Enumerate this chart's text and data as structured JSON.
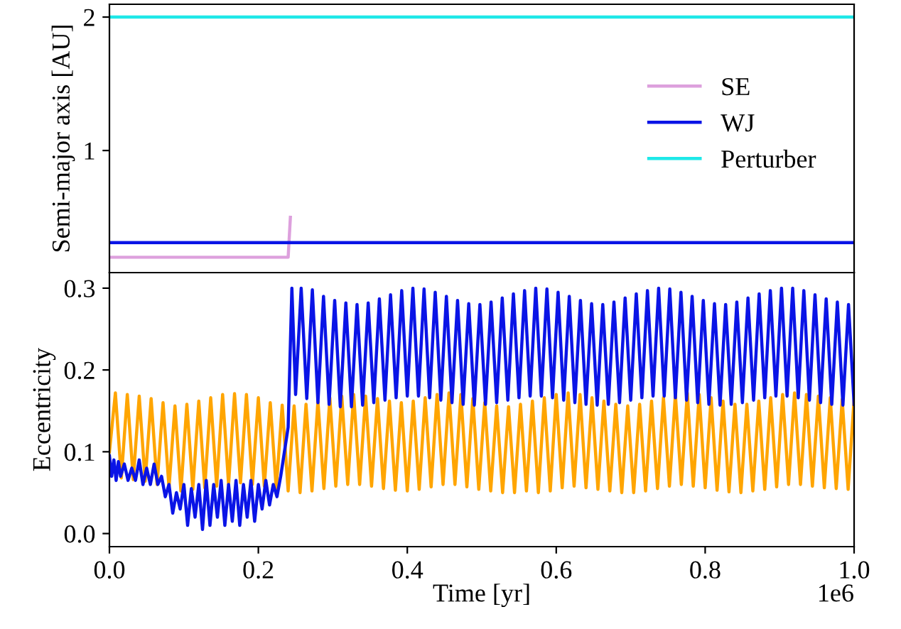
{
  "chart_data": [
    {
      "type": "line",
      "ylabel": "Semi-major axis [AU]",
      "xlim": [
        0.0,
        1.0
      ],
      "ylim": [
        0.085,
        2.096
      ],
      "yticks": [
        1,
        2
      ],
      "tick_labels": "y",
      "legend": "right",
      "grid": false,
      "series": [
        {
          "name": "SE",
          "color": "#dda0dd",
          "x": [
            0.0,
            0.24,
            0.243
          ],
          "values": [
            0.2,
            0.2,
            0.5
          ]
        },
        {
          "name": "WJ",
          "color": "#0a14e6",
          "x": [
            0.0,
            1.0
          ],
          "values": [
            0.31,
            0.31
          ]
        },
        {
          "name": "Perturber",
          "color": "#1ee8e8",
          "x": [
            0.0,
            1.0
          ],
          "values": [
            2.0,
            2.0
          ]
        }
      ]
    },
    {
      "type": "line",
      "xlabel": "Time [yr]",
      "ylabel": "Eccentricity",
      "xlim": [
        0.0,
        1.0
      ],
      "ylim": [
        -0.016,
        0.319
      ],
      "xticks": [
        {
          "value": 0,
          "label": "0.0"
        },
        0.2,
        0.4,
        0.6,
        0.8,
        {
          "value": 1,
          "label": "1.0"
        }
      ],
      "yticks": [
        {
          "value": 0,
          "label": "0.0"
        },
        0.1,
        0.2,
        0.3
      ],
      "annotations": [
        "1e6"
      ],
      "grid": false,
      "series": [
        {
          "color": "#ffa500",
          "x": [
            0.0,
            0.008,
            0.016,
            0.024,
            0.032,
            0.04,
            0.048,
            0.056,
            0.064,
            0.072,
            0.08,
            0.088,
            0.096,
            0.104,
            0.112,
            0.12,
            0.128,
            0.136,
            0.144,
            0.152,
            0.16,
            0.168,
            0.176,
            0.184,
            0.192,
            0.2,
            0.208,
            0.216,
            0.224,
            0.232,
            0.24,
            0.248,
            0.256,
            0.264,
            0.272,
            0.28,
            0.288,
            0.296,
            0.304,
            0.312,
            0.32,
            0.328,
            0.336,
            0.344,
            0.352,
            0.36,
            0.368,
            0.376,
            0.384,
            0.392,
            0.4,
            0.408,
            0.416,
            0.424,
            0.432,
            0.44,
            0.448,
            0.456,
            0.464,
            0.472,
            0.48,
            0.488,
            0.496,
            0.504,
            0.512,
            0.52,
            0.528,
            0.536,
            0.544,
            0.552,
            0.56,
            0.568,
            0.576,
            0.584,
            0.592,
            0.6,
            0.608,
            0.616,
            0.624,
            0.632,
            0.64,
            0.648,
            0.656,
            0.664,
            0.672,
            0.68,
            0.688,
            0.696,
            0.704,
            0.712,
            0.72,
            0.728,
            0.736,
            0.744,
            0.752,
            0.76,
            0.768,
            0.776,
            0.784,
            0.792,
            0.8,
            0.808,
            0.816,
            0.824,
            0.832,
            0.84,
            0.848,
            0.856,
            0.864,
            0.872,
            0.88,
            0.888,
            0.896,
            0.904,
            0.912,
            0.92,
            0.928,
            0.936,
            0.944,
            0.952,
            0.96,
            0.968,
            0.976,
            0.984,
            0.992,
            1.0
          ],
          "values": [
            0.1,
            0.172,
            0.068,
            0.17,
            0.066,
            0.168,
            0.064,
            0.165,
            0.06,
            0.16,
            0.056,
            0.156,
            0.052,
            0.158,
            0.054,
            0.162,
            0.056,
            0.166,
            0.058,
            0.17,
            0.06,
            0.171,
            0.062,
            0.17,
            0.06,
            0.166,
            0.058,
            0.16,
            0.055,
            0.157,
            0.052,
            0.156,
            0.05,
            0.158,
            0.052,
            0.162,
            0.055,
            0.166,
            0.058,
            0.168,
            0.06,
            0.17,
            0.06,
            0.168,
            0.058,
            0.165,
            0.055,
            0.162,
            0.053,
            0.16,
            0.052,
            0.162,
            0.054,
            0.166,
            0.057,
            0.17,
            0.06,
            0.172,
            0.06,
            0.17,
            0.057,
            0.165,
            0.054,
            0.16,
            0.052,
            0.156,
            0.05,
            0.155,
            0.05,
            0.158,
            0.052,
            0.162,
            0.05,
            0.166,
            0.052,
            0.17,
            0.056,
            0.172,
            0.058,
            0.17,
            0.056,
            0.166,
            0.054,
            0.162,
            0.052,
            0.158,
            0.05,
            0.156,
            0.05,
            0.158,
            0.052,
            0.162,
            0.055,
            0.166,
            0.058,
            0.17,
            0.06,
            0.172,
            0.058,
            0.17,
            0.056,
            0.166,
            0.053,
            0.162,
            0.051,
            0.158,
            0.05,
            0.158,
            0.052,
            0.162,
            0.054,
            0.166,
            0.057,
            0.17,
            0.06,
            0.172,
            0.06,
            0.17,
            0.058,
            0.168,
            0.056,
            0.166,
            0.055,
            0.164,
            0.054,
            0.165
          ]
        },
        {
          "color": "#0a14e6",
          "x": [
            0.0,
            0.003,
            0.006,
            0.009,
            0.012,
            0.015,
            0.02,
            0.025,
            0.03,
            0.035,
            0.04,
            0.045,
            0.05,
            0.055,
            0.06,
            0.065,
            0.07,
            0.075,
            0.08,
            0.085,
            0.09,
            0.095,
            0.1,
            0.105,
            0.11,
            0.115,
            0.12,
            0.125,
            0.13,
            0.135,
            0.14,
            0.145,
            0.15,
            0.155,
            0.16,
            0.165,
            0.17,
            0.175,
            0.18,
            0.185,
            0.19,
            0.195,
            0.2,
            0.205,
            0.21,
            0.215,
            0.22,
            0.225,
            0.23,
            0.235,
            0.24,
            0.245,
            0.25,
            0.2575,
            0.265,
            0.2725,
            0.28,
            0.2875,
            0.295,
            0.3025,
            0.31,
            0.3175,
            0.325,
            0.3325,
            0.34,
            0.3475,
            0.355,
            0.3625,
            0.37,
            0.3775,
            0.385,
            0.3925,
            0.4,
            0.4075,
            0.415,
            0.4225,
            0.43,
            0.4375,
            0.445,
            0.4525,
            0.46,
            0.4675,
            0.475,
            0.4825,
            0.49,
            0.4975,
            0.505,
            0.5125,
            0.52,
            0.5275,
            0.535,
            0.5425,
            0.55,
            0.5575,
            0.565,
            0.5725,
            0.58,
            0.5875,
            0.595,
            0.6025,
            0.61,
            0.6175,
            0.625,
            0.6325,
            0.64,
            0.6475,
            0.655,
            0.6625,
            0.67,
            0.6775,
            0.685,
            0.6925,
            0.7,
            0.7075,
            0.715,
            0.7225,
            0.73,
            0.7375,
            0.745,
            0.7525,
            0.76,
            0.7675,
            0.775,
            0.7825,
            0.79,
            0.7975,
            0.805,
            0.8125,
            0.82,
            0.8275,
            0.835,
            0.8425,
            0.85,
            0.8575,
            0.865,
            0.8725,
            0.88,
            0.8875,
            0.895,
            0.9025,
            0.91,
            0.9175,
            0.925,
            0.9325,
            0.94,
            0.9475,
            0.955,
            0.9625,
            0.97,
            0.9775,
            0.985,
            0.9925,
            1.0
          ],
          "values": [
            0.095,
            0.07,
            0.09,
            0.065,
            0.088,
            0.07,
            0.085,
            0.065,
            0.08,
            0.065,
            0.09,
            0.06,
            0.08,
            0.06,
            0.085,
            0.06,
            0.07,
            0.045,
            0.06,
            0.025,
            0.05,
            0.03,
            0.06,
            0.01,
            0.055,
            0.02,
            0.06,
            0.005,
            0.065,
            0.01,
            0.06,
            0.02,
            0.065,
            0.01,
            0.06,
            0.015,
            0.065,
            0.01,
            0.06,
            0.02,
            0.065,
            0.015,
            0.06,
            0.03,
            0.065,
            0.035,
            0.06,
            0.045,
            0.07,
            0.1,
            0.13,
            0.3,
            0.17,
            0.3,
            0.165,
            0.298,
            0.16,
            0.29,
            0.158,
            0.285,
            0.155,
            0.282,
            0.155,
            0.28,
            0.157,
            0.282,
            0.16,
            0.287,
            0.163,
            0.292,
            0.166,
            0.297,
            0.168,
            0.3,
            0.168,
            0.299,
            0.166,
            0.295,
            0.163,
            0.29,
            0.16,
            0.285,
            0.158,
            0.281,
            0.157,
            0.28,
            0.158,
            0.283,
            0.16,
            0.288,
            0.163,
            0.293,
            0.166,
            0.297,
            0.168,
            0.3,
            0.168,
            0.299,
            0.166,
            0.295,
            0.163,
            0.29,
            0.16,
            0.285,
            0.158,
            0.281,
            0.157,
            0.28,
            0.158,
            0.283,
            0.16,
            0.288,
            0.163,
            0.293,
            0.166,
            0.297,
            0.168,
            0.3,
            0.168,
            0.299,
            0.166,
            0.295,
            0.163,
            0.29,
            0.16,
            0.285,
            0.158,
            0.281,
            0.157,
            0.28,
            0.158,
            0.283,
            0.16,
            0.288,
            0.163,
            0.293,
            0.166,
            0.297,
            0.168,
            0.3,
            0.168,
            0.3,
            0.166,
            0.297,
            0.163,
            0.292,
            0.16,
            0.287,
            0.158,
            0.283,
            0.157,
            0.28,
            0.158
          ]
        }
      ]
    }
  ]
}
